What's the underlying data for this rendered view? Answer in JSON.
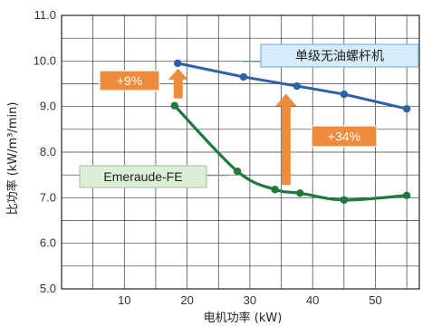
{
  "chart_data": {
    "type": "line",
    "xlabel": "电机功率 (kW)",
    "ylabel": "比功率 (kW/m³/min)",
    "xlim": [
      0,
      57
    ],
    "ylim": [
      5.0,
      11.0
    ],
    "x_ticks": [
      10,
      20,
      30,
      40,
      50
    ],
    "y_ticks": [
      "5.0",
      "6.0",
      "7.0",
      "8.0",
      "9.0",
      "10.0",
      "11.0"
    ],
    "grid": true,
    "series": [
      {
        "name": "单级无油螺杆机",
        "color": "#2e62a8",
        "points": [
          [
            18.5,
            9.95
          ],
          [
            29,
            9.65
          ],
          [
            37.5,
            9.45
          ],
          [
            45,
            9.27
          ],
          [
            55,
            8.95
          ]
        ]
      },
      {
        "name": "Emeraude-FE",
        "color": "#1e7a3c",
        "points": [
          [
            18,
            9.02
          ],
          [
            28,
            7.58
          ],
          [
            34,
            7.18
          ],
          [
            38,
            7.1
          ],
          [
            45,
            6.95
          ],
          [
            55,
            7.05
          ]
        ]
      }
    ],
    "annotations": [
      {
        "text": "+9%",
        "color": "#f08a3c"
      },
      {
        "text": "+34%",
        "color": "#f08a3c"
      }
    ]
  }
}
